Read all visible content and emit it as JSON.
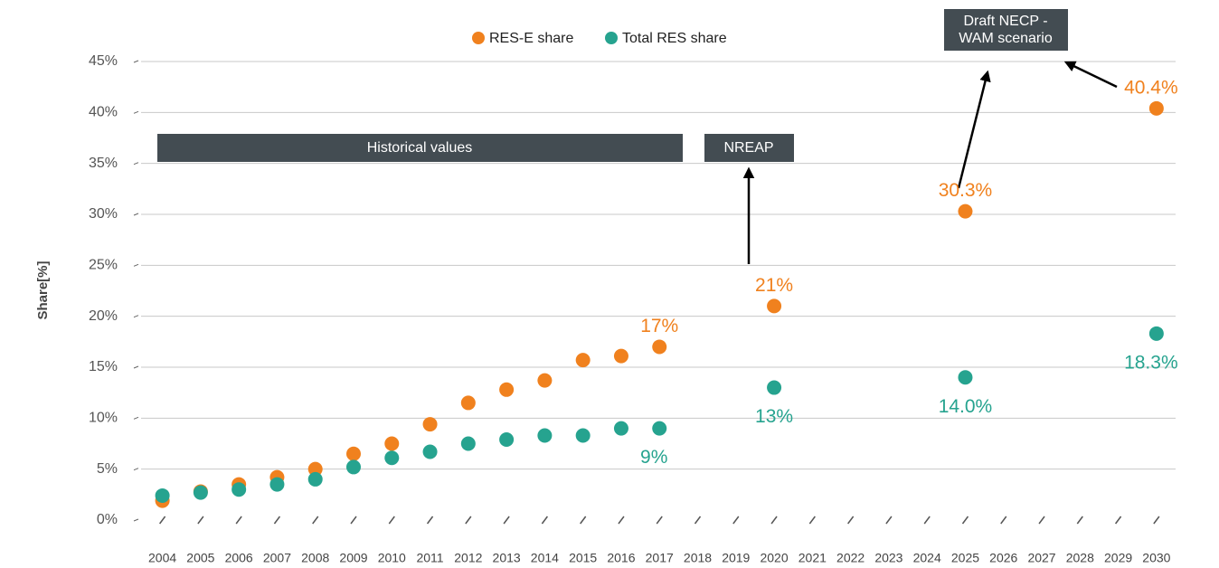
{
  "chart_data": {
    "type": "scatter",
    "y_label": "Share[%]",
    "x": [
      2004,
      2005,
      2006,
      2007,
      2008,
      2009,
      2010,
      2011,
      2012,
      2013,
      2014,
      2015,
      2016,
      2017,
      2020,
      2025,
      2030
    ],
    "series": [
      {
        "name": "RES-E share",
        "color": "#f0811e",
        "values": [
          1.9,
          2.8,
          3.5,
          4.2,
          5.0,
          6.5,
          7.5,
          9.4,
          11.5,
          12.8,
          13.7,
          15.7,
          16.1,
          17,
          21,
          30.3,
          40.4
        ],
        "value_labels": [
          null,
          null,
          null,
          null,
          null,
          null,
          null,
          null,
          null,
          null,
          null,
          null,
          null,
          "17%",
          "21%",
          "30.3%",
          "40.4%"
        ]
      },
      {
        "name": "Total RES share",
        "color": "#26a38f",
        "values": [
          2.4,
          2.7,
          3.0,
          3.5,
          4.0,
          5.2,
          6.1,
          6.7,
          7.5,
          7.9,
          8.3,
          8.3,
          9.0,
          9,
          13,
          14.0,
          18.3
        ],
        "value_labels": [
          null,
          null,
          null,
          null,
          null,
          null,
          null,
          null,
          null,
          null,
          null,
          null,
          null,
          "9%",
          "13%",
          "14.0%",
          "18.3%"
        ]
      }
    ],
    "xlim": [
      2003.3,
      2030.5
    ],
    "xticks": [
      2004,
      2005,
      2006,
      2007,
      2008,
      2009,
      2010,
      2011,
      2012,
      2013,
      2014,
      2015,
      2016,
      2017,
      2018,
      2019,
      2020,
      2021,
      2022,
      2023,
      2024,
      2025,
      2026,
      2027,
      2028,
      2029,
      2030
    ],
    "ylim": [
      0,
      45
    ],
    "yticks": [
      {
        "value": 0,
        "label": "0%"
      },
      {
        "value": 5,
        "label": "5%"
      },
      {
        "value": 10,
        "label": "10%"
      },
      {
        "value": 15,
        "label": "15%"
      },
      {
        "value": 20,
        "label": "20%"
      },
      {
        "value": 25,
        "label": "25%"
      },
      {
        "value": 30,
        "label": "30%"
      },
      {
        "value": 35,
        "label": "35%"
      },
      {
        "value": 40,
        "label": "40%"
      },
      {
        "value": 45,
        "label": "45%"
      }
    ],
    "grid": true,
    "annotations": [
      "Historical values",
      "NREAP",
      "Draft NECP -",
      "WAM scenario"
    ]
  }
}
